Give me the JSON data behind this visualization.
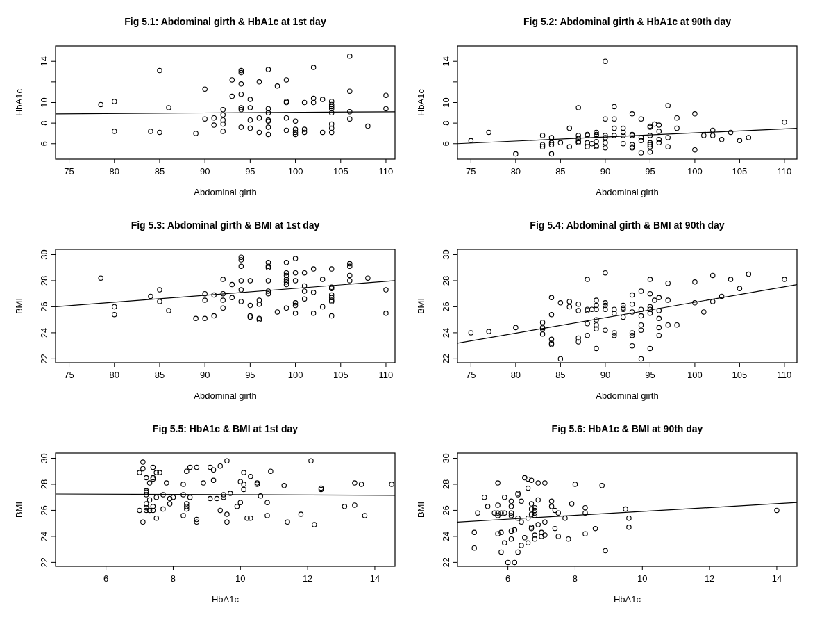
{
  "chart_data": [
    {
      "type": "scatter",
      "title": "Fig 5.1: Abdominal girth & HbA1c at 1st day",
      "xlabel": "Abdominal girth",
      "ylabel": "HbA1c",
      "xlim": [
        73.5,
        111
      ],
      "ylim": [
        4.5,
        15.5
      ],
      "xticks": [
        75,
        80,
        85,
        90,
        95,
        100,
        105,
        110
      ],
      "yticks": [
        6,
        8,
        10,
        {
          "value": 12,
          "label": null
        },
        14
      ],
      "series": [
        {
          "marker": "circle",
          "color": "#000000",
          "x": [
            78.5,
            80,
            80,
            84,
            85,
            85,
            86,
            89,
            90,
            90,
            91,
            91,
            92,
            92,
            92,
            92,
            92,
            93,
            93,
            94,
            94,
            94,
            94,
            94,
            94,
            94,
            95,
            95,
            95,
            95,
            96,
            96,
            96,
            97,
            97,
            97,
            97,
            97,
            97,
            97,
            98,
            99,
            99,
            99,
            99,
            99,
            100,
            100,
            100,
            100,
            101,
            101,
            101,
            102,
            102,
            102,
            103,
            103,
            104,
            104,
            104,
            104,
            104,
            104,
            104,
            104,
            106,
            106,
            106,
            106,
            108,
            110,
            110
          ],
          "values": [
            9.8,
            10.1,
            7.2,
            7.2,
            13.1,
            7.1,
            9.5,
            7.0,
            11.3,
            8.4,
            8.5,
            7.8,
            9.3,
            8.8,
            8.3,
            7.9,
            7.2,
            12.2,
            10.6,
            13.1,
            12.9,
            11.8,
            10.8,
            9.5,
            9.3,
            7.6,
            10.3,
            9.5,
            8.3,
            7.5,
            12.0,
            8.5,
            7.1,
            13.2,
            9.4,
            9.0,
            8.3,
            8.2,
            7.6,
            6.9,
            11.6,
            12.2,
            10.1,
            10.0,
            8.5,
            7.3,
            8.2,
            7.4,
            7.1,
            6.9,
            10.0,
            7.4,
            7.1,
            13.4,
            10.4,
            10.0,
            10.3,
            7.1,
            10.1,
            9.8,
            9.6,
            9.4,
            9.0,
            7.9,
            7.5,
            7.1,
            14.5,
            11.1,
            9.1,
            8.4,
            7.7,
            10.7,
            9.4
          ]
        },
        {
          "type": "line",
          "color": "#000000",
          "x": [
            73.5,
            111
          ],
          "values": [
            8.9,
            9.1
          ]
        }
      ]
    },
    {
      "type": "scatter",
      "title": "Fig 5.2: Abdominal girth & HbA1c at 90th day",
      "xlabel": "Abdominal girth",
      "ylabel": "HbA1c",
      "xlim": [
        73.5,
        111.4
      ],
      "ylim": [
        4.5,
        15.5
      ],
      "xticks": [
        75,
        80,
        85,
        90,
        95,
        100,
        105,
        110
      ],
      "yticks": [
        6,
        8,
        10,
        {
          "value": 12,
          "label": null
        },
        14
      ],
      "series": [
        {
          "marker": "circle",
          "color": "#000000",
          "x": [
            75,
            77,
            80,
            83,
            83,
            83,
            84,
            84,
            84,
            84,
            85,
            86,
            86,
            87,
            87,
            87,
            87,
            87,
            88,
            88,
            88,
            88,
            88.5,
            89,
            89,
            89,
            89,
            89,
            89,
            90,
            90,
            90,
            90,
            90,
            90,
            91,
            91,
            91,
            91,
            92,
            92,
            92,
            92,
            93,
            93,
            93,
            93,
            93,
            93,
            94,
            94,
            94,
            94,
            95,
            95,
            95,
            95,
            95,
            95,
            95,
            95.5,
            96,
            96,
            96,
            96,
            97,
            97,
            97,
            98,
            98,
            100,
            100,
            101,
            102,
            102,
            103,
            104,
            105,
            106,
            110
          ],
          "values": [
            6.3,
            7.1,
            5.0,
            6.8,
            5.9,
            5.7,
            6.6,
            6.1,
            5.9,
            5.0,
            6.1,
            7.5,
            5.7,
            9.5,
            6.8,
            6.5,
            6.2,
            6.1,
            6.9,
            6.8,
            6.1,
            5.7,
            6.0,
            7.1,
            6.9,
            6.8,
            6.2,
            5.8,
            5.7,
            14.0,
            8.4,
            6.8,
            6.6,
            6.1,
            5.6,
            9.6,
            8.4,
            7.5,
            6.8,
            7.5,
            7.1,
            6.8,
            6.0,
            8.9,
            6.9,
            6.8,
            5.9,
            5.7,
            5.6,
            8.4,
            6.6,
            6.3,
            5.1,
            7.7,
            7.6,
            6.8,
            6.1,
            5.9,
            5.7,
            5.2,
            7.9,
            7.8,
            7.2,
            6.4,
            6.1,
            9.7,
            6.6,
            5.7,
            8.5,
            7.5,
            8.9,
            5.4,
            6.8,
            7.3,
            6.8,
            6.4,
            7.1,
            6.3,
            6.6,
            8.1
          ]
        },
        {
          "type": "line",
          "color": "#000000",
          "x": [
            73.5,
            111.4
          ],
          "values": [
            6.0,
            7.5
          ]
        }
      ]
    },
    {
      "type": "scatter",
      "title": "Fig 5.3: Abdominal girth & BMI at 1st day",
      "xlabel": "Abdominal girth",
      "ylabel": "BMI",
      "xlim": [
        73.5,
        111
      ],
      "ylim": [
        21.7,
        30.4
      ],
      "xticks": [
        75,
        80,
        85,
        90,
        95,
        100,
        105,
        110
      ],
      "yticks": [
        22,
        24,
        26,
        28,
        30
      ],
      "series": [
        {
          "marker": "circle",
          "color": "#000000",
          "x": [
            78.5,
            80,
            80,
            84,
            85,
            85,
            86,
            89,
            90,
            90,
            90,
            91,
            91,
            92,
            92,
            92,
            92,
            93,
            93,
            94,
            94,
            94,
            94,
            94,
            94,
            95,
            95,
            95,
            95,
            96,
            96,
            96,
            96,
            97,
            97,
            97,
            97,
            97,
            97,
            98,
            99,
            99,
            99,
            99,
            99,
            99,
            99,
            100,
            100,
            100,
            100,
            100,
            100,
            101,
            101,
            101,
            101,
            102,
            102,
            102,
            103,
            103,
            104,
            104,
            104,
            104,
            104,
            104,
            104,
            104,
            106,
            106,
            106,
            106,
            108,
            110,
            110
          ],
          "values": [
            28.2,
            26.0,
            25.4,
            26.8,
            27.3,
            26.4,
            25.7,
            25.1,
            27.0,
            26.5,
            25.1,
            26.9,
            25.3,
            28.1,
            27.0,
            26.5,
            25.9,
            27.7,
            26.7,
            29.8,
            29.6,
            29.1,
            28.0,
            27.3,
            26.4,
            28.0,
            26.1,
            25.3,
            25.2,
            26.5,
            26.2,
            25.1,
            25.0,
            29.4,
            29.1,
            29.0,
            28.0,
            27.2,
            27.0,
            25.6,
            29.4,
            28.6,
            28.4,
            28.1,
            27.9,
            27.7,
            25.9,
            29.7,
            28.6,
            28.0,
            26.3,
            26.1,
            25.5,
            28.6,
            27.6,
            27.2,
            26.6,
            28.9,
            27.1,
            25.5,
            28.1,
            26.0,
            28.9,
            27.5,
            27.4,
            26.9,
            26.7,
            26.5,
            26.4,
            25.3,
            29.3,
            29.1,
            28.4,
            28.0,
            28.2,
            27.3,
            25.5
          ]
        },
        {
          "type": "line",
          "color": "#000000",
          "x": [
            73.5,
            111
          ],
          "values": [
            26.0,
            28.0
          ]
        }
      ]
    },
    {
      "type": "scatter",
      "title": "Fig 5.4: Abdominal girth & BMI at 90th day",
      "xlabel": "Abdominal girth",
      "ylabel": "BMI",
      "xlim": [
        73.5,
        111.4
      ],
      "ylim": [
        21.7,
        30.4
      ],
      "xticks": [
        75,
        80,
        85,
        90,
        95,
        100,
        105,
        110
      ],
      "yticks": [
        22,
        24,
        26,
        28,
        30
      ],
      "series": [
        {
          "marker": "circle",
          "color": "#000000",
          "x": [
            75,
            77,
            80,
            83,
            83,
            83,
            83,
            84,
            84,
            84,
            84,
            84,
            85,
            85,
            86,
            86,
            87,
            87,
            87,
            87,
            88,
            88,
            88,
            88,
            88,
            88.5,
            89,
            89,
            89,
            89,
            89,
            89,
            89,
            90,
            90,
            90,
            90,
            90,
            91,
            91,
            91,
            91,
            92,
            92,
            92,
            92,
            93,
            93,
            93,
            93,
            93,
            93,
            94,
            94,
            94,
            94,
            94,
            94,
            95,
            95,
            95,
            95,
            95,
            95,
            95.5,
            96,
            96,
            96,
            96,
            96,
            97,
            97,
            97,
            98,
            100,
            100,
            101,
            102,
            102,
            103,
            104,
            105,
            106,
            110
          ],
          "values": [
            24.0,
            24.1,
            24.4,
            24.8,
            24.4,
            24.3,
            23.9,
            26.7,
            25.4,
            23.5,
            23.2,
            23.1,
            26.3,
            22.0,
            26.4,
            26.0,
            26.2,
            25.7,
            23.6,
            23.3,
            28.1,
            25.8,
            25.7,
            24.7,
            23.8,
            25.8,
            26.5,
            26.1,
            25.8,
            25.0,
            24.6,
            24.3,
            22.8,
            28.6,
            26.3,
            26.1,
            25.8,
            24.2,
            25.8,
            25.5,
            24.0,
            23.8,
            26.1,
            25.9,
            25.8,
            25.2,
            26.9,
            26.2,
            25.6,
            24.0,
            23.8,
            23.0,
            27.2,
            25.8,
            25.3,
            24.6,
            24.2,
            22.0,
            28.1,
            27.0,
            26.0,
            25.8,
            25.5,
            22.8,
            26.5,
            26.7,
            25.7,
            25.1,
            24.4,
            23.8,
            27.8,
            26.5,
            24.6,
            24.6,
            27.9,
            26.3,
            25.6,
            28.4,
            26.4,
            26.8,
            28.1,
            27.4,
            28.5,
            28.1
          ]
        },
        {
          "type": "line",
          "color": "#000000",
          "x": [
            73.5,
            111.4
          ],
          "values": [
            23.2,
            27.7
          ]
        }
      ]
    },
    {
      "type": "scatter",
      "title": "Fig 5.5: HbA1c & BMI at 1st day",
      "xlabel": "HbA1c",
      "ylabel": "BMI",
      "xlim": [
        4.5,
        14.6
      ],
      "ylim": [
        21.7,
        30.4
      ],
      "xticks": [
        6,
        8,
        10,
        12,
        14
      ],
      "yticks": [
        22,
        24,
        26,
        28,
        30
      ],
      "series": [
        {
          "marker": "circle",
          "color": "#000000",
          "x": [
            7.1,
            7.1,
            7.0,
            7.2,
            7.4,
            7.4,
            7.4,
            7.3,
            7.5,
            7.6,
            7.8,
            7.2,
            7.2,
            7.2,
            7.3,
            7.5,
            7.2,
            7.4,
            7.2,
            7.0,
            7.2,
            7.3,
            7.4,
            7.1,
            7.5,
            7.7,
            7.7,
            7.9,
            8.0,
            7.9,
            8.3,
            8.3,
            8.5,
            8.4,
            8.4,
            8.4,
            8.3,
            8.4,
            8.5,
            8.7,
            8.7,
            8.7,
            8.9,
            9.1,
            9.2,
            9.2,
            9.1,
            9.3,
            9.4,
            9.6,
            9.4,
            9.5,
            9.5,
            9.7,
            9.6,
            9.6,
            9.9,
            10.0,
            10.0,
            10.1,
            10.1,
            10.1,
            10.2,
            10.3,
            10.3,
            10.5,
            10.5,
            10.6,
            10.8,
            10.8,
            10.9,
            11.3,
            11.4,
            11.8,
            12.1,
            12.2,
            12.4,
            12.4,
            13.1,
            13.4,
            13.4,
            13.6,
            13.7,
            14.5
          ],
          "values": [
            29.7,
            29.2,
            28.9,
            28.5,
            29.3,
            28.5,
            28.4,
            28.1,
            28.9,
            28.9,
            28.1,
            27.5,
            27.4,
            27.2,
            26.8,
            27.0,
            26.5,
            26.3,
            26.2,
            26.0,
            26.0,
            26.0,
            26.0,
            25.1,
            25.4,
            27.2,
            26.1,
            26.9,
            27.0,
            26.5,
            28.0,
            27.2,
            27.0,
            26.5,
            26.3,
            26.1,
            25.6,
            29.0,
            29.3,
            29.3,
            25.3,
            25.1,
            28.1,
            29.3,
            29.1,
            28.3,
            26.9,
            26.9,
            29.4,
            29.8,
            26.0,
            27.2,
            27.0,
            27.3,
            25.7,
            25.1,
            26.3,
            26.6,
            28.2,
            28.9,
            28.0,
            27.6,
            25.4,
            28.6,
            25.4,
            28.1,
            28.0,
            27.1,
            26.6,
            25.6,
            29.0,
            27.9,
            25.1,
            25.7,
            29.8,
            24.9,
            27.7,
            27.6,
            26.3,
            26.4,
            28.1,
            28.0,
            25.6,
            28.0
          ]
        },
        {
          "type": "line",
          "color": "#000000",
          "x": [
            4.5,
            14.6
          ],
          "values": [
            27.25,
            27.15
          ]
        }
      ]
    },
    {
      "type": "scatter",
      "title": "Fig 5.6: HbA1c & BMI at 90th day",
      "xlabel": "HbA1c",
      "ylabel": "BMI",
      "xlim": [
        4.5,
        14.6
      ],
      "ylim": [
        21.7,
        30.4
      ],
      "xticks": [
        6,
        8,
        10,
        12,
        14
      ],
      "yticks": [
        22,
        24,
        26,
        28,
        30
      ],
      "series": [
        {
          "marker": "circle",
          "color": "#000000",
          "x": [
            5.0,
            5.1,
            5.3,
            5.4,
            5.6,
            5.7,
            5.7,
            5.7,
            5.7,
            5.7,
            5.8,
            5.8,
            5.9,
            5.9,
            6.1,
            6.1,
            6.1,
            6.1,
            6.1,
            6.2,
            6.3,
            6.3,
            6.3,
            6.4,
            6.4,
            6.5,
            6.6,
            6.7,
            6.6,
            6.6,
            6.7,
            6.7,
            6.7,
            6.7,
            6.7,
            6.8,
            6.8,
            6.8,
            6.8,
            6.8,
            6.9,
            6.9,
            6.9,
            7.0,
            7.1,
            7.1,
            7.1,
            7.3,
            7.3,
            7.4,
            7.5,
            7.4,
            7.7,
            7.9,
            8.0,
            8.3,
            8.3,
            8.3,
            8.6,
            8.8,
            9.5,
            9.6,
            9.6,
            14.0,
            5.0,
            5.8,
            5.9,
            6.0,
            6.1,
            6.2,
            6.3,
            6.4,
            6.5,
            6.6,
            6.8,
            7.0,
            7.5,
            7.8,
            8.9
          ],
          "values": [
            24.3,
            25.8,
            27.0,
            26.3,
            25.8,
            28.1,
            26.4,
            25.8,
            25.6,
            24.2,
            24.3,
            25.8,
            27.0,
            25.8,
            26.7,
            26.3,
            25.8,
            25.6,
            24.4,
            24.5,
            27.3,
            27.2,
            25.4,
            26.7,
            25.1,
            28.5,
            28.4,
            28.3,
            27.7,
            25.4,
            26.5,
            26.1,
            25.7,
            24.7,
            24.6,
            26.2,
            26.0,
            25.8,
            25.6,
            24.1,
            28.1,
            26.8,
            24.9,
            24.3,
            28.1,
            25.1,
            24.1,
            26.7,
            26.3,
            26.0,
            25.8,
            24.6,
            25.4,
            26.5,
            28.0,
            26.2,
            25.8,
            24.2,
            24.6,
            27.9,
            26.1,
            25.4,
            24.7,
            26.0,
            23.1,
            22.8,
            23.5,
            22.0,
            23.8,
            22.0,
            22.8,
            23.3,
            23.9,
            23.5,
            23.8,
            24.0,
            24.0,
            23.8,
            22.9
          ]
        },
        {
          "type": "line",
          "color": "#000000",
          "x": [
            4.5,
            14.6
          ],
          "values": [
            25.1,
            26.6
          ]
        }
      ]
    }
  ]
}
